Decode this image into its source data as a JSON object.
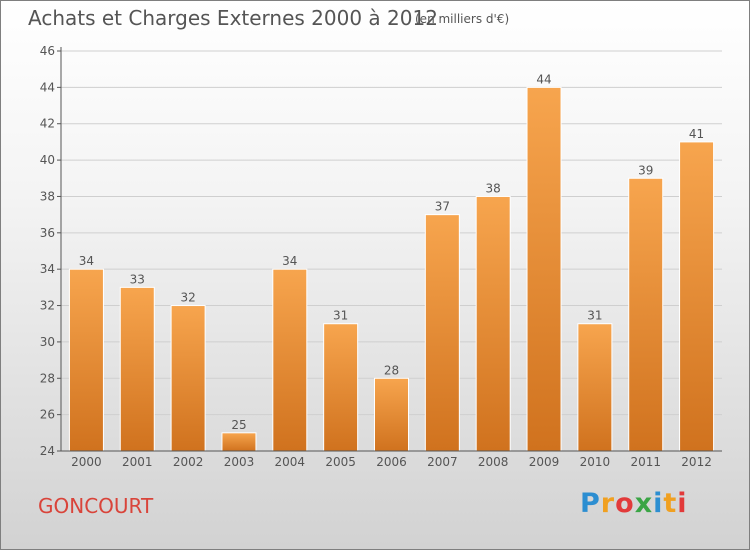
{
  "title": "Achats et Charges Externes 2000 à 2012",
  "subtitle": "(en milliers d'€)",
  "commune": "GONCOURT",
  "logo": {
    "text": "Proxiti",
    "letters": [
      "P",
      "r",
      "o",
      "x",
      "i",
      "t",
      "i"
    ],
    "colors": [
      "#2c8ed1",
      "#f0a020",
      "#e23a3a",
      "#3aa545"
    ]
  },
  "colors": {
    "bar_light": "#f7a54e",
    "bar_dark": "#d0721e",
    "axis": "#555555",
    "grid": "#cfcfcf",
    "title": "#555555",
    "commune": "#d9443a"
  },
  "chart_data": {
    "type": "bar",
    "categories": [
      "2000",
      "2001",
      "2002",
      "2003",
      "2004",
      "2005",
      "2006",
      "2007",
      "2008",
      "2009",
      "2010",
      "2011",
      "2012"
    ],
    "values": [
      34,
      33,
      32,
      25,
      34,
      31,
      28,
      37,
      38,
      44,
      31,
      39,
      41
    ],
    "title": "Achats et Charges Externes 2000 à 2012",
    "ylabel": "",
    "xlabel": "",
    "ylim": [
      24,
      46
    ],
    "yticks": [
      24,
      26,
      28,
      30,
      32,
      34,
      36,
      38,
      40,
      42,
      44,
      46
    ],
    "grid": true,
    "legend": "none"
  }
}
